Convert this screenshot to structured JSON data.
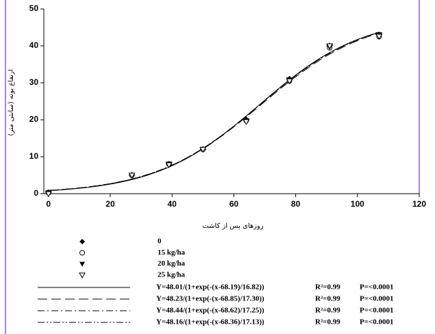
{
  "chart_data": {
    "type": "scatter",
    "x_label": "روزهای پس از کاشت",
    "y_label": "ارتفاع بوته (سانتی متر)",
    "x": [
      0,
      27,
      39,
      50,
      64,
      78,
      91,
      107
    ],
    "series": [
      {
        "name": "0",
        "color": "#000000",
        "marker": "diamond-filled",
        "values": [
          0.3,
          5,
          8,
          12,
          20,
          31,
          40,
          43
        ]
      },
      {
        "name": "15 kg/ha",
        "color": "#000000",
        "marker": "circle-open",
        "values": [
          0.3,
          5,
          8,
          12,
          19.8,
          30.5,
          39.5,
          42.5
        ]
      },
      {
        "name": "20 kg/ha",
        "color": "#000000",
        "marker": "triangle-down-filled",
        "values": [
          0.2,
          5,
          8,
          12,
          19.7,
          30.8,
          39.8,
          43
        ]
      },
      {
        "name": "25 kg/ha",
        "color": "#000000",
        "marker": "triangle-down-open",
        "values": [
          0,
          5,
          7.8,
          12,
          19.5,
          30.5,
          40,
          42.6
        ]
      }
    ],
    "fits": [
      {
        "equation": "Y=48.01/(1+exp(-(x-68.19)/16.82))",
        "a": 48.01,
        "x0": 68.19,
        "b": 16.82,
        "r2": "R²=0.99",
        "p": "P=<0.0001",
        "dash": "solid"
      },
      {
        "equation": "Y=48.23/(1+exp(-(x-68.85)/17.30))",
        "a": 48.23,
        "x0": 68.85,
        "b": 17.3,
        "r2": "R²=0.99",
        "p": "P=<0.0001",
        "dash": "dash"
      },
      {
        "equation": "Y=48.44/(1+exp(-(x-68.62)/17.25))",
        "a": 48.44,
        "x0": 68.62,
        "b": 17.25,
        "r2": "R²=0.99",
        "p": "P=<0.0001",
        "dash": "dashdot"
      },
      {
        "equation": "Y=48.16/(1+exp(-(x-68.36)/17.13))",
        "a": 48.16,
        "x0": 68.36,
        "b": 17.13,
        "r2": "R²=0.99",
        "p": "P=<0.0001",
        "dash": "dashdotdot"
      }
    ],
    "xlim": [
      -1.5,
      120
    ],
    "xticks": [
      0,
      20,
      40,
      60,
      80,
      100,
      120
    ],
    "ylim": [
      0,
      50
    ],
    "yticks": [
      0,
      10,
      20,
      30,
      40,
      50
    ]
  }
}
